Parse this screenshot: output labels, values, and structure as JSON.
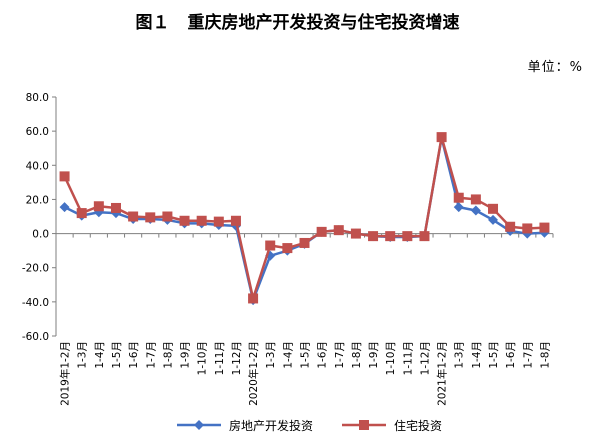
{
  "title": {
    "fig_no": "图１",
    "text": "重庆房地产开发投资与住宅投资增速"
  },
  "unit": "单位：%",
  "colors": {
    "series1": "#4472C4",
    "series2": "#C0504D",
    "axis": "#7F7F7F"
  },
  "chart_data": {
    "type": "line",
    "categories": [
      "2019年1-2月",
      "1-3月",
      "1-4月",
      "1-5月",
      "1-6月",
      "1-7月",
      "1-8月",
      "1-9月",
      "1-10月",
      "1-11月",
      "1-12月",
      "2020年1-2月",
      "1-3月",
      "1-4月",
      "1-5月",
      "1-6月",
      "1-7月",
      "1-8月",
      "1-9月",
      "1-10月",
      "1-11月",
      "1-12月",
      "2021年1-2月",
      "1-3月",
      "1-4月",
      "1-5月",
      "1-6月",
      "1-7月",
      "1-8月"
    ],
    "series": [
      {
        "name": "房地产开发投资",
        "marker": "diamond",
        "values": [
          15.5,
          10.5,
          12.5,
          12,
          8.5,
          8.5,
          8,
          6,
          6,
          5,
          4.5,
          -39,
          -13,
          -10,
          -6,
          1,
          2,
          0,
          -1.5,
          -2,
          -2,
          -1.5,
          56,
          15.5,
          13.5,
          8,
          1.5,
          0,
          0.5
        ]
      },
      {
        "name": "住宅投资",
        "marker": "square",
        "values": [
          33.5,
          12,
          16,
          15,
          10,
          9.5,
          10,
          7.5,
          7.5,
          7,
          7.5,
          -38,
          -7,
          -8.5,
          -5.5,
          1,
          2,
          0,
          -1.5,
          -1.5,
          -1.5,
          -1.5,
          56.5,
          21,
          20,
          14.5,
          4,
          3,
          3.5
        ]
      }
    ],
    "ylim": [
      -60,
      80
    ],
    "yticks": [
      "80.0",
      "60.0",
      "40.0",
      "20.0",
      "0.0",
      "-20.0",
      "-40.0",
      "-60.0"
    ],
    "ytick_values": [
      80,
      60,
      40,
      20,
      0,
      -20,
      -40,
      -60
    ],
    "grid": false,
    "legend": "bottom"
  }
}
